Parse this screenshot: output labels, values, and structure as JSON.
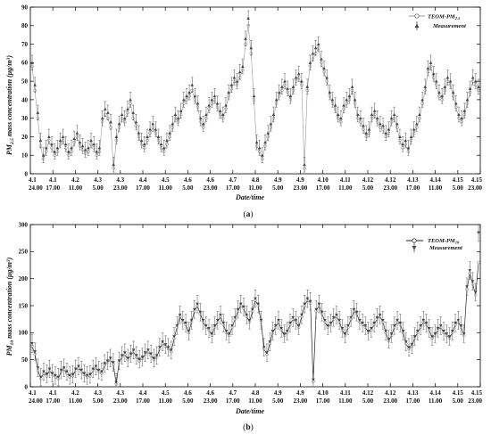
{
  "chart_data": [
    {
      "type": "line",
      "panel_label": "a",
      "xlabel": "Date/time",
      "ylabel_parts": [
        "PM",
        "2.5",
        " mass concentration (μg/m",
        "3",
        ")"
      ],
      "ylim": [
        0,
        90
      ],
      "yticks": [
        "0",
        "10",
        "20",
        "30",
        "40",
        "50",
        "60",
        "70",
        "80",
        "90"
      ],
      "x_ticks": [
        {
          "date": "4.1",
          "time": "24.00"
        },
        {
          "date": "4.1",
          "time": "17.00"
        },
        {
          "date": "4.2",
          "time": "11.00"
        },
        {
          "date": "4.3",
          "time": "5.00"
        },
        {
          "date": "4.3",
          "time": "23.00"
        },
        {
          "date": "4.4",
          "time": "17.00"
        },
        {
          "date": "4.5",
          "time": "11.00"
        },
        {
          "date": "4.6",
          "time": "5.00"
        },
        {
          "date": "4.6",
          "time": "23.00"
        },
        {
          "date": "4.7",
          "time": "17.00"
        },
        {
          "date": "4.8",
          "time": "11.00"
        },
        {
          "date": "4.9",
          "time": "5.00"
        },
        {
          "date": "4.9",
          "time": "23.00"
        },
        {
          "date": "4.10",
          "time": "17.00"
        },
        {
          "date": "4.11",
          "time": "11.00"
        },
        {
          "date": "4.12",
          "time": "5.00"
        },
        {
          "date": "4.12",
          "time": "23.00"
        },
        {
          "date": "4.13",
          "time": "17.00"
        },
        {
          "date": "4.14",
          "time": "11.00"
        },
        {
          "date": "4.15",
          "time": "5.00"
        },
        {
          "date": "4.15",
          "time": "23.00"
        }
      ],
      "series": [
        {
          "name_parts": [
            "TEOM-PM",
            "2.5"
          ],
          "marker": "circle",
          "y": [
            58,
            45,
            30,
            15,
            8,
            12,
            18,
            14,
            10,
            12,
            16,
            18,
            14,
            10,
            12,
            17,
            20,
            15,
            13,
            11,
            12,
            16,
            14,
            10,
            12,
            28,
            32,
            30,
            25,
            3,
            18,
            25,
            30,
            28,
            33,
            38,
            30,
            26,
            20,
            16,
            14,
            18,
            22,
            25,
            22,
            18,
            14,
            12,
            16,
            20,
            25,
            30,
            28,
            32,
            38,
            40,
            42,
            45,
            40,
            36,
            28,
            25,
            30,
            35,
            38,
            40,
            36,
            32,
            30,
            35,
            42,
            46,
            50,
            48,
            52,
            56,
            70,
            80,
            65,
            40,
            15,
            12,
            8,
            15,
            20,
            25,
            30,
            38,
            42,
            45,
            48,
            44,
            40,
            45,
            50,
            52,
            48,
            3,
            45,
            58,
            62,
            65,
            68,
            60,
            55,
            50,
            42,
            38,
            35,
            30,
            28,
            35,
            38,
            40,
            45,
            38,
            30,
            28,
            24,
            20,
            22,
            30,
            32,
            28,
            25,
            24,
            20,
            22,
            28,
            30,
            25,
            18,
            14,
            16,
            12,
            18,
            22,
            25,
            30,
            38,
            45,
            55,
            58,
            52,
            48,
            42,
            40,
            45,
            50,
            48,
            42,
            36,
            30,
            28,
            32,
            38,
            44,
            50,
            48,
            45
          ]
        },
        {
          "name": "Measurement",
          "marker": "triangle",
          "y": [
            60,
            48,
            33,
            18,
            10,
            14,
            20,
            16,
            12,
            14,
            18,
            20,
            16,
            12,
            14,
            19,
            22,
            17,
            15,
            13,
            14,
            18,
            16,
            12,
            14,
            30,
            35,
            33,
            28,
            5,
            20,
            27,
            32,
            30,
            35,
            40,
            33,
            28,
            22,
            18,
            16,
            20,
            24,
            27,
            24,
            20,
            16,
            14,
            18,
            22,
            27,
            32,
            30,
            34,
            40,
            42,
            44,
            48,
            42,
            38,
            30,
            27,
            32,
            37,
            40,
            42,
            38,
            34,
            32,
            37,
            44,
            48,
            52,
            50,
            55,
            58,
            73,
            84,
            68,
            42,
            17,
            14,
            10,
            17,
            22,
            27,
            32,
            40,
            44,
            47,
            50,
            46,
            42,
            47,
            52,
            54,
            50,
            5,
            47,
            60,
            65,
            68,
            70,
            62,
            57,
            52,
            44,
            40,
            37,
            32,
            30,
            37,
            40,
            42,
            47,
            40,
            32,
            30,
            26,
            22,
            24,
            32,
            34,
            30,
            27,
            26,
            22,
            24,
            30,
            32,
            27,
            20,
            16,
            18,
            14,
            20,
            24,
            27,
            32,
            40,
            47,
            57,
            60,
            54,
            50,
            44,
            42,
            47,
            52,
            50,
            44,
            38,
            32,
            30,
            34,
            40,
            46,
            52,
            50,
            47
          ]
        }
      ]
    },
    {
      "type": "line",
      "panel_label": "b",
      "xlabel": "Date/time",
      "ylabel_parts": [
        "PM",
        "10",
        " mass concentration (μg/m",
        "3",
        ")"
      ],
      "ylim": [
        0,
        300
      ],
      "yticks": [
        "0",
        "50",
        "100",
        "150",
        "200",
        "250",
        "300"
      ],
      "x_ticks": [
        {
          "date": "4.1",
          "time": "24.00"
        },
        {
          "date": "4.1",
          "time": "17.00"
        },
        {
          "date": "4.2",
          "time": "11.00"
        },
        {
          "date": "4.3",
          "time": "5.00"
        },
        {
          "date": "4.3",
          "time": "23.00"
        },
        {
          "date": "4.4",
          "time": "17.00"
        },
        {
          "date": "4.5",
          "time": "11.00"
        },
        {
          "date": "4.6",
          "time": "5.00"
        },
        {
          "date": "4.6",
          "time": "23.00"
        },
        {
          "date": "4.7",
          "time": "17.00"
        },
        {
          "date": "4.8",
          "time": "11.00"
        },
        {
          "date": "4.9",
          "time": "5.00"
        },
        {
          "date": "4.9",
          "time": "23.00"
        },
        {
          "date": "4.10",
          "time": "17.00"
        },
        {
          "date": "4.11",
          "time": "11.00"
        },
        {
          "date": "4.12",
          "time": "5.00"
        },
        {
          "date": "4.12",
          "time": "23.00"
        },
        {
          "date": "4.13",
          "time": "17.00"
        },
        {
          "date": "4.14",
          "time": "11.00"
        },
        {
          "date": "4.15",
          "time": "5.00"
        },
        {
          "date": "4.15",
          "time": "23.00"
        }
      ],
      "series": [
        {
          "name_parts": [
            "TEOM-PM",
            "10"
          ],
          "marker": "circle",
          "y": [
            75,
            60,
            30,
            15,
            25,
            20,
            30,
            22,
            18,
            15,
            28,
            32,
            25,
            18,
            20,
            30,
            35,
            28,
            22,
            18,
            20,
            30,
            35,
            28,
            25,
            40,
            45,
            50,
            42,
            5,
            45,
            55,
            60,
            50,
            58,
            65,
            55,
            48,
            52,
            60,
            65,
            58,
            50,
            55,
            70,
            80,
            75,
            70,
            65,
            90,
            110,
            130,
            120,
            115,
            100,
            120,
            140,
            150,
            135,
            120,
            110,
            105,
            95,
            110,
            120,
            130,
            115,
            100,
            95,
            110,
            125,
            140,
            150,
            145,
            130,
            120,
            140,
            160,
            150,
            120,
            70,
            60,
            80,
            100,
            110,
            120,
            105,
            95,
            100,
            115,
            125,
            120,
            110,
            130,
            150,
            160,
            155,
            10,
            140,
            150,
            135,
            120,
            110,
            115,
            125,
            130,
            120,
            105,
            95,
            110,
            125,
            140,
            135,
            120,
            115,
            110,
            100,
            105,
            115,
            125,
            130,
            120,
            100,
            85,
            95,
            110,
            120,
            115,
            100,
            80,
            70,
            75,
            90,
            100,
            110,
            120,
            115,
            105,
            90,
            95,
            105,
            110,
            100,
            95,
            90,
            100,
            115,
            120,
            110,
            95,
            180,
            210,
            190,
            170,
            230
          ]
        },
        {
          "name": "Measurement",
          "marker": "triangle-down",
          "y": [
            80,
            65,
            35,
            18,
            28,
            24,
            33,
            25,
            21,
            18,
            31,
            35,
            28,
            21,
            23,
            33,
            38,
            31,
            25,
            21,
            23,
            33,
            38,
            31,
            28,
            43,
            48,
            53,
            45,
            8,
            48,
            58,
            63,
            53,
            61,
            68,
            58,
            51,
            55,
            63,
            68,
            61,
            53,
            58,
            73,
            83,
            78,
            73,
            68,
            93,
            113,
            133,
            123,
            118,
            103,
            123,
            143,
            153,
            138,
            123,
            113,
            108,
            98,
            113,
            123,
            133,
            118,
            103,
            98,
            113,
            128,
            143,
            153,
            148,
            133,
            123,
            143,
            163,
            153,
            123,
            73,
            63,
            83,
            103,
            113,
            123,
            108,
            98,
            103,
            118,
            128,
            123,
            113,
            133,
            153,
            163,
            158,
            13,
            143,
            153,
            138,
            123,
            113,
            118,
            128,
            133,
            123,
            108,
            98,
            113,
            128,
            143,
            138,
            123,
            118,
            113,
            103,
            108,
            118,
            128,
            133,
            123,
            103,
            88,
            98,
            113,
            123,
            118,
            103,
            83,
            73,
            78,
            93,
            103,
            113,
            123,
            118,
            108,
            93,
            98,
            108,
            113,
            103,
            98,
            93,
            103,
            118,
            123,
            113,
            98,
            185,
            215,
            195,
            175,
            285
          ]
        }
      ]
    }
  ],
  "colors": {
    "teom_line": "#9a9a9a",
    "teom_line_b": "#222222",
    "measurement": "#444444",
    "axis": "#000000"
  }
}
